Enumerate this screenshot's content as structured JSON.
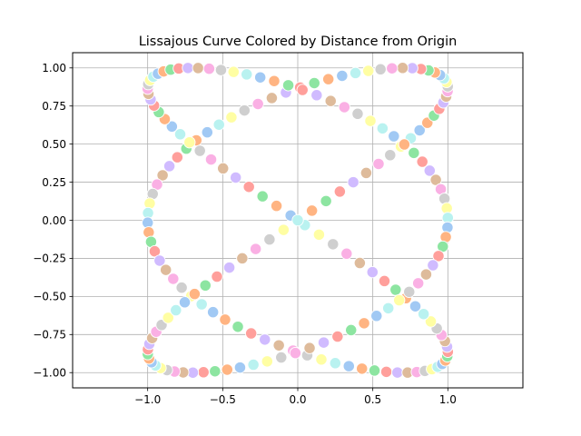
{
  "chart_data": {
    "type": "scatter",
    "title": "Lissajous Curve Colored by Distance from Origin",
    "xlabel": "",
    "ylabel": "",
    "xlim": [
      -1.5,
      1.5
    ],
    "ylim": [
      -1.1,
      1.1
    ],
    "x_ticks": [
      -1.0,
      -0.5,
      0.0,
      0.5,
      1.0
    ],
    "x_tick_labels": [
      "−1.0",
      "−0.5",
      "0.0",
      "0.5",
      "1.0"
    ],
    "y_ticks": [
      -1.0,
      -0.75,
      -0.5,
      -0.25,
      0.0,
      0.25,
      0.5,
      0.75,
      1.0
    ],
    "y_tick_labels": [
      "−1.00",
      "−0.75",
      "−0.50",
      "−0.25",
      "0.00",
      "0.25",
      "0.50",
      "0.75",
      "1.00"
    ],
    "grid": true,
    "legend": "none",
    "curve": {
      "x": "sin(3t)",
      "y": "sin(2t)",
      "t_range": [
        0,
        6.283185
      ],
      "num_points": 200
    },
    "palette": [
      "#a1c9f4",
      "#ffb482",
      "#8de5a1",
      "#ff9f9b",
      "#d0bbff",
      "#debb9b",
      "#fab0e4",
      "#cfcfcf",
      "#fffea3",
      "#b9f2f0"
    ]
  }
}
